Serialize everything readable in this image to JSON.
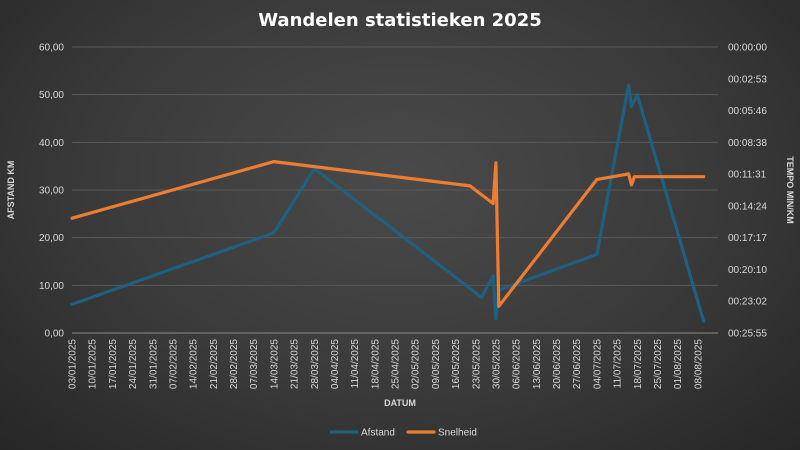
{
  "chart_data": {
    "type": "line",
    "title": "Wandelen statistieken 2025",
    "xlabel": "DATUM",
    "ylabel": "AFSTAND KM",
    "y2label": "TEMPO MIN/KM",
    "x_ticks": [
      "03/01/2025",
      "10/01/2025",
      "17/01/2025",
      "24/01/2025",
      "31/01/2025",
      "07/02/2025",
      "14/02/2025",
      "21/02/2025",
      "28/02/2025",
      "07/03/2025",
      "14/03/2025",
      "21/03/2025",
      "28/03/2025",
      "04/04/2025",
      "11/04/2025",
      "18/04/2025",
      "25/04/2025",
      "02/05/2025",
      "09/05/2025",
      "16/05/2025",
      "23/05/2025",
      "30/05/2025",
      "06/06/2025",
      "13/06/2025",
      "20/06/2025",
      "27/06/2025",
      "04/07/2025",
      "11/07/2025",
      "18/07/2025",
      "25/07/2025",
      "01/08/2025",
      "08/08/2025"
    ],
    "y_ticks": [
      "0,00",
      "10,00",
      "20,00",
      "30,00",
      "40,00",
      "50,00",
      "60,00"
    ],
    "y2_ticks": [
      "00:00:00",
      "00:02:53",
      "00:05:46",
      "00:08:38",
      "00:11:31",
      "00:14:24",
      "00:17:17",
      "00:20:10",
      "00:23:02",
      "00:25:55"
    ],
    "ylim": [
      0,
      60
    ],
    "y2lim_seconds": [
      0,
      1555
    ],
    "y2_reversed": true,
    "grid": true,
    "legend_position": "bottom",
    "series": [
      {
        "name": "Afstand",
        "axis": "left",
        "color": "#1f5f7f",
        "points": [
          {
            "x": "2025-01-03",
            "y": 6.0
          },
          {
            "x": "2025-03-14",
            "y": 21.0
          },
          {
            "x": "2025-03-28",
            "y": 34.5
          },
          {
            "x": "2025-05-25",
            "y": 7.5
          },
          {
            "x": "2025-05-29",
            "y": 12.0
          },
          {
            "x": "2025-05-30",
            "y": 3.0
          },
          {
            "x": "2025-05-31",
            "y": 9.0
          },
          {
            "x": "2025-07-04",
            "y": 16.5
          },
          {
            "x": "2025-07-15",
            "y": 52.0
          },
          {
            "x": "2025-07-16",
            "y": 47.5
          },
          {
            "x": "2025-07-18",
            "y": 50.0
          },
          {
            "x": "2025-08-10",
            "y": 2.5
          }
        ]
      },
      {
        "name": "Snelheid",
        "axis": "right",
        "color": "#ed7d31",
        "points": [
          {
            "x": "2025-01-03",
            "y": "00:15:31"
          },
          {
            "x": "2025-03-14",
            "y": "00:10:23"
          },
          {
            "x": "2025-05-21",
            "y": "00:12:35"
          },
          {
            "x": "2025-05-29",
            "y": "00:14:11"
          },
          {
            "x": "2025-05-30",
            "y": "00:10:30"
          },
          {
            "x": "2025-05-31",
            "y": "00:23:30"
          },
          {
            "x": "2025-07-04",
            "y": "00:12:00"
          },
          {
            "x": "2025-07-15",
            "y": "00:11:30"
          },
          {
            "x": "2025-07-16",
            "y": "00:12:30"
          },
          {
            "x": "2025-07-17",
            "y": "00:11:45"
          },
          {
            "x": "2025-08-10",
            "y": "00:11:45"
          }
        ]
      }
    ]
  }
}
